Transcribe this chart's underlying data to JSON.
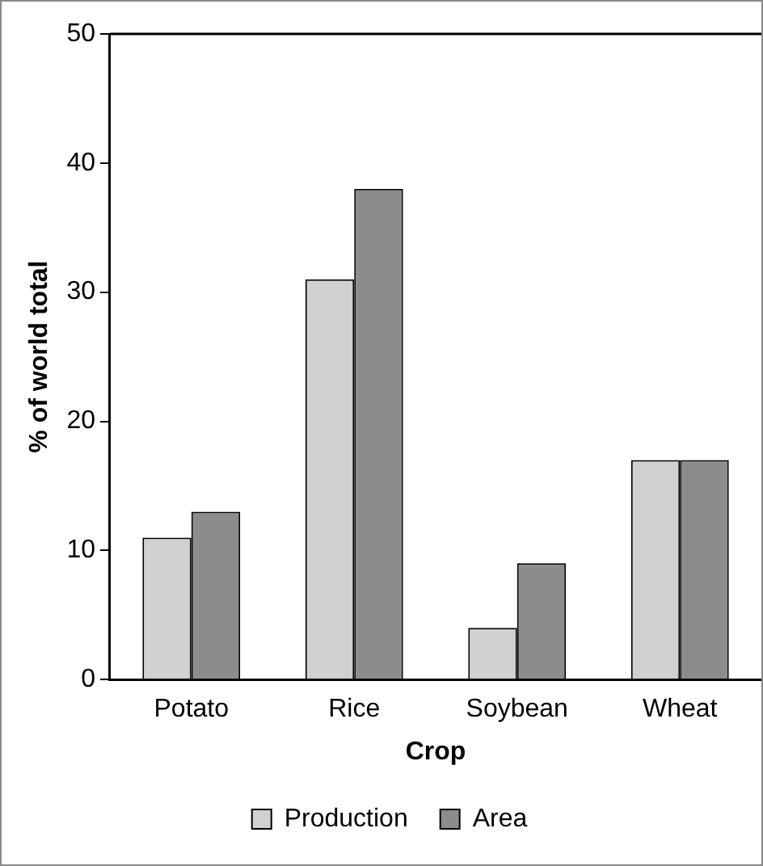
{
  "chart_data": {
    "type": "bar",
    "xlabel": "Crop",
    "ylabel": "% of world total",
    "categories": [
      "Potato",
      "Rice",
      "Soybean",
      "Wheat"
    ],
    "series": [
      {
        "name": "Production",
        "color": "#d0d0d0",
        "values": [
          11,
          31,
          4,
          17
        ]
      },
      {
        "name": "Area",
        "color": "#8c8c8c",
        "values": [
          13,
          38,
          9,
          17
        ]
      }
    ],
    "ylim": [
      0,
      50
    ],
    "yticks": [
      0,
      10,
      20,
      30,
      40,
      50
    ],
    "grid": false,
    "legend": "bottom"
  }
}
